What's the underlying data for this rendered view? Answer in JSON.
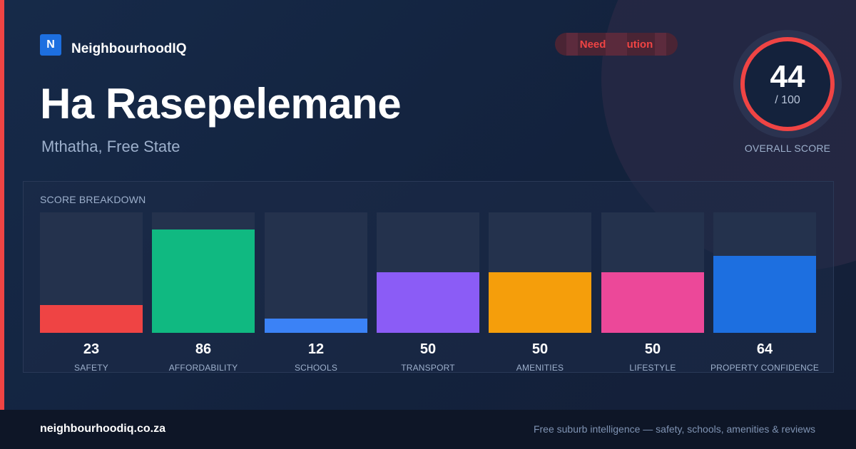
{
  "brand": {
    "logo_letter": "N",
    "name": "NeighbourhoodIQ"
  },
  "suburb": {
    "name": "Ha Rasepelemane",
    "location": "Mthatha, Free State"
  },
  "status": {
    "label": "Needs caution",
    "color": "#ef4444"
  },
  "overall": {
    "score": "44",
    "max": "/ 100",
    "label": "OVERALL SCORE",
    "ring_color": "#ef4444"
  },
  "breakdown": {
    "title": "SCORE BREAKDOWN",
    "max_value": 100,
    "items": [
      {
        "label": "SAFETY",
        "value": 23,
        "value_text": "23",
        "color": "#ef4444"
      },
      {
        "label": "AFFORDABILITY",
        "value": 86,
        "value_text": "86",
        "color": "#10b981"
      },
      {
        "label": "SCHOOLS",
        "value": 12,
        "value_text": "12",
        "color": "#3b82f6"
      },
      {
        "label": "TRANSPORT",
        "value": 50,
        "value_text": "50",
        "color": "#8b5cf6"
      },
      {
        "label": "AMENITIES",
        "value": 50,
        "value_text": "50",
        "color": "#f59e0b"
      },
      {
        "label": "LIFESTYLE",
        "value": 50,
        "value_text": "50",
        "color": "#ec4899"
      },
      {
        "label": "PROPERTY CONFIDENCE",
        "value": 64,
        "value_text": "64",
        "color": "#1d6fe0"
      }
    ]
  },
  "footer": {
    "url": "neighbourhoodiq.co.za",
    "tagline": "Free suburb intelligence — safety, schools, amenities & reviews"
  }
}
